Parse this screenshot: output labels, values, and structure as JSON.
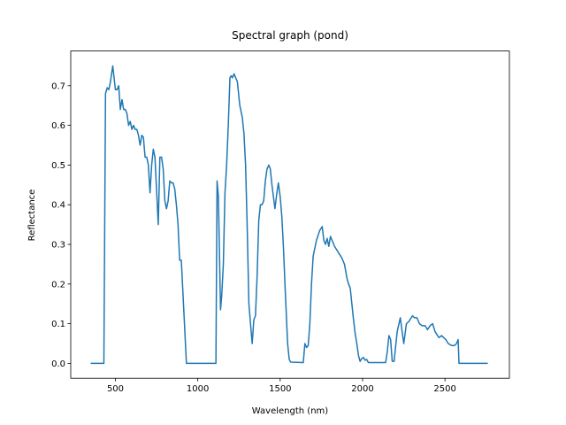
{
  "chart_data": {
    "type": "line",
    "title": "Spectral graph (pond)",
    "xlabel": "Wavelength (nm)",
    "ylabel": "Reflectance",
    "xlim": [
      229,
      2891
    ],
    "ylim": [
      -0.0375,
      0.7875
    ],
    "xticks": [
      500,
      1000,
      1500,
      2000,
      2500
    ],
    "yticks": [
      {
        "value": 0,
        "label": "0.0"
      },
      0.1,
      0.2,
      0.3,
      0.4,
      0.5,
      0.6,
      0.7
    ],
    "series": [
      {
        "color": "#1f77b4",
        "x": [
          350,
          430,
          440,
          450,
          460,
          470,
          484,
          500,
          510,
          520,
          530,
          540,
          550,
          560,
          570,
          580,
          590,
          600,
          610,
          620,
          630,
          640,
          650,
          660,
          670,
          680,
          690,
          700,
          710,
          720,
          730,
          740,
          760,
          770,
          780,
          790,
          800,
          810,
          820,
          830,
          840,
          850,
          860,
          870,
          880,
          890,
          900,
          931,
          1110,
          1117,
          1125,
          1138,
          1145,
          1155,
          1165,
          1175,
          1185,
          1195,
          1202,
          1210,
          1220,
          1230,
          1240,
          1255,
          1270,
          1280,
          1290,
          1300,
          1310,
          1330,
          1340,
          1350,
          1360,
          1370,
          1380,
          1390,
          1400,
          1410,
          1420,
          1431,
          1440,
          1450,
          1468,
          1480,
          1489,
          1500,
          1510,
          1520,
          1530,
          1545,
          1555,
          1564,
          1640,
          1650,
          1660,
          1670,
          1680,
          1690,
          1700,
          1720,
          1740,
          1755,
          1765,
          1775,
          1785,
          1795,
          1805,
          1815,
          1830,
          1845,
          1860,
          1875,
          1890,
          1905,
          1915,
          1925,
          1935,
          1945,
          1955,
          1965,
          1975,
          1985,
          1995,
          2005,
          2015,
          2025,
          2035,
          2140,
          2150,
          2160,
          2170,
          2180,
          2191,
          2200,
          2210,
          2229,
          2240,
          2250,
          2266,
          2280,
          2303,
          2315,
          2330,
          2345,
          2362,
          2380,
          2394,
          2410,
          2425,
          2440,
          2463,
          2480,
          2505,
          2520,
          2540,
          2558,
          2570,
          2580,
          2585,
          2760
        ],
        "values": [
          0,
          0,
          0.68,
          0.695,
          0.69,
          0.71,
          0.75,
          0.69,
          0.69,
          0.7,
          0.64,
          0.665,
          0.64,
          0.64,
          0.63,
          0.6,
          0.61,
          0.59,
          0.6,
          0.59,
          0.59,
          0.575,
          0.55,
          0.575,
          0.57,
          0.52,
          0.52,
          0.5,
          0.43,
          0.5,
          0.54,
          0.52,
          0.35,
          0.52,
          0.52,
          0.49,
          0.41,
          0.39,
          0.41,
          0.46,
          0.455,
          0.455,
          0.44,
          0.4,
          0.35,
          0.26,
          0.26,
          0,
          0,
          0.46,
          0.42,
          0.135,
          0.17,
          0.25,
          0.43,
          0.5,
          0.6,
          0.72,
          0.725,
          0.72,
          0.73,
          0.72,
          0.71,
          0.65,
          0.62,
          0.58,
          0.5,
          0.34,
          0.15,
          0.05,
          0.11,
          0.12,
          0.22,
          0.36,
          0.4,
          0.4,
          0.41,
          0.46,
          0.49,
          0.5,
          0.49,
          0.45,
          0.39,
          0.43,
          0.455,
          0.42,
          0.37,
          0.29,
          0.19,
          0.05,
          0.01,
          0.003,
          0.002,
          0.05,
          0.04,
          0.045,
          0.1,
          0.2,
          0.27,
          0.31,
          0.335,
          0.345,
          0.31,
          0.3,
          0.315,
          0.295,
          0.32,
          0.31,
          0.295,
          0.285,
          0.275,
          0.265,
          0.25,
          0.215,
          0.2,
          0.19,
          0.15,
          0.11,
          0.075,
          0.05,
          0.02,
          0.005,
          0.012,
          0.015,
          0.008,
          0.01,
          0.002,
          0.002,
          0.03,
          0.07,
          0.06,
          0.005,
          0.005,
          0.04,
          0.08,
          0.115,
          0.08,
          0.05,
          0.1,
          0.105,
          0.12,
          0.115,
          0.115,
          0.1,
          0.095,
          0.095,
          0.085,
          0.095,
          0.1,
          0.08,
          0.065,
          0.07,
          0.06,
          0.05,
          0.045,
          0.045,
          0.05,
          0.06,
          0,
          0
        ]
      }
    ]
  }
}
